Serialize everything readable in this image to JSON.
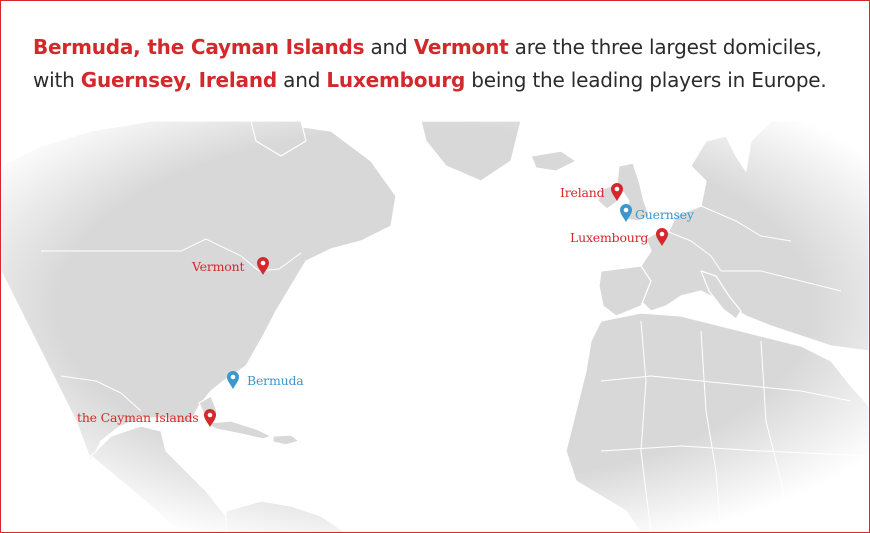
{
  "headline": {
    "line1": {
      "place1": "Bermuda, the Cayman Islands",
      "word1": " and ",
      "place2": "Vermont",
      "rest": " are the three largest domiciles,"
    },
    "line2": {
      "lead": "with ",
      "place1": "Guernsey, Ireland",
      "word1": " and ",
      "place2": "Luxembourg",
      "rest": " being the leading players in Europe."
    }
  },
  "colors": {
    "highlight": "#d3292c",
    "text": "#2b2b2b",
    "land": "#d7d7d7",
    "water": "#ffffff",
    "pin_red": "#d3292c",
    "pin_blue": "#3b97cc"
  },
  "markers": [
    {
      "name": "Ireland",
      "color": "red",
      "icon": "map-pin-icon"
    },
    {
      "name": "Guernsey",
      "color": "blue",
      "icon": "map-pin-icon"
    },
    {
      "name": "Luxembourg",
      "color": "red",
      "icon": "map-pin-icon"
    },
    {
      "name": "Vermont",
      "color": "red",
      "icon": "map-pin-icon"
    },
    {
      "name": "Bermuda",
      "color": "blue",
      "icon": "map-pin-icon"
    },
    {
      "name": "the Cayman Islands",
      "color": "red",
      "icon": "map-pin-icon"
    }
  ]
}
